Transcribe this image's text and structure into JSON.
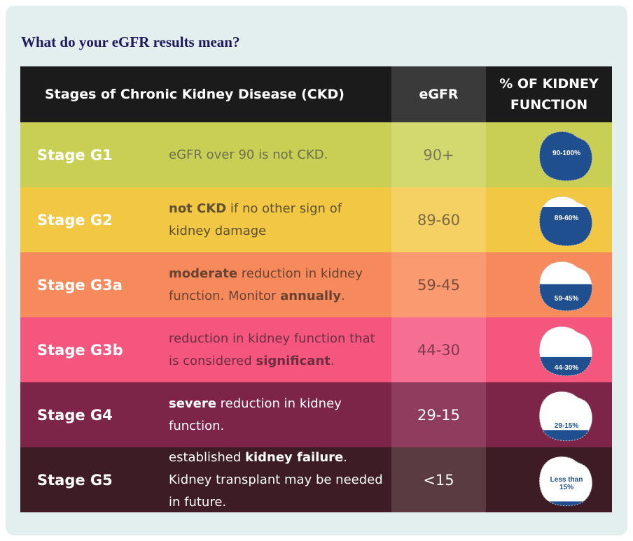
{
  "heading": "What do your eGFR results mean?",
  "header": {
    "stages": "Stages of Chronic Kidney Disease (CKD)",
    "egfr": "eGFR",
    "function_line1": "% OF KIDNEY",
    "function_line2": "FUNCTION"
  },
  "rows": [
    {
      "stage": "Stage G1",
      "desc": [
        {
          "t": "eGFR over 90 is not CKD.",
          "b": false
        }
      ],
      "egfr": "90+",
      "kidney_label": "90-100%",
      "level": 1.0,
      "colors": {
        "row": "#c8cf54",
        "egfr": "#d4d96f",
        "text": "#6e6e4e",
        "egfr_text": "#7a7a58"
      }
    },
    {
      "stage": "Stage G2",
      "desc": [
        {
          "t": "not CKD",
          "b": true
        },
        {
          "t": " if no other sign of kidney damage",
          "b": false
        }
      ],
      "egfr": "89-60",
      "kidney_label": "89-60%",
      "level": 0.75,
      "colors": {
        "row": "#f2c744",
        "egfr": "#f4d162",
        "text": "#5e5030",
        "egfr_text": "#7a6a42"
      }
    },
    {
      "stage": "Stage G3a",
      "desc": [
        {
          "t": "moderate",
          "b": true
        },
        {
          "t": " reduction in kidney function. Monitor ",
          "b": false
        },
        {
          "t": "annually",
          "b": true
        },
        {
          "t": ".",
          "b": false
        }
      ],
      "egfr": "59-45",
      "kidney_label": "59-45%",
      "level": 0.52,
      "colors": {
        "row": "#f78a5c",
        "egfr": "#f99a71",
        "text": "#6a4232",
        "egfr_text": "#7c4c3a"
      }
    },
    {
      "stage": "Stage G3b",
      "desc": [
        {
          "t": "reduction in kidney function that is considered ",
          "b": false
        },
        {
          "t": "significant",
          "b": true
        },
        {
          "t": ".",
          "b": false
        }
      ],
      "egfr": "44-30",
      "kidney_label": "44-30%",
      "level": 0.37,
      "colors": {
        "row": "#f5567d",
        "egfr": "#f66e91",
        "text": "#6e2e42",
        "egfr_text": "#80384e"
      }
    },
    {
      "stage": "Stage G4",
      "desc": [
        {
          "t": "severe",
          "b": true
        },
        {
          "t": " reduction in kidney function.",
          "b": false
        }
      ],
      "egfr": "29-15",
      "kidney_label": "29-15%",
      "level": 0.22,
      "colors": {
        "row": "#7c2548",
        "egfr": "#8f3c5e",
        "text": "#ffffff",
        "egfr_text": "#ffffff"
      }
    },
    {
      "stage": "Stage G5",
      "desc": [
        {
          "t": "established ",
          "b": false
        },
        {
          "t": "kidney failure",
          "b": true
        },
        {
          "t": ".  Kidney transplant may be needed in future.",
          "b": false
        }
      ],
      "egfr": "<15",
      "kidney_label": "Less than 15%",
      "level": 0.1,
      "colors": {
        "row": "#3d1c25",
        "egfr": "#5a3b42",
        "text": "#ffffff",
        "egfr_text": "#ffffff"
      }
    }
  ],
  "kidney_fill_color": "#1f4f8e"
}
